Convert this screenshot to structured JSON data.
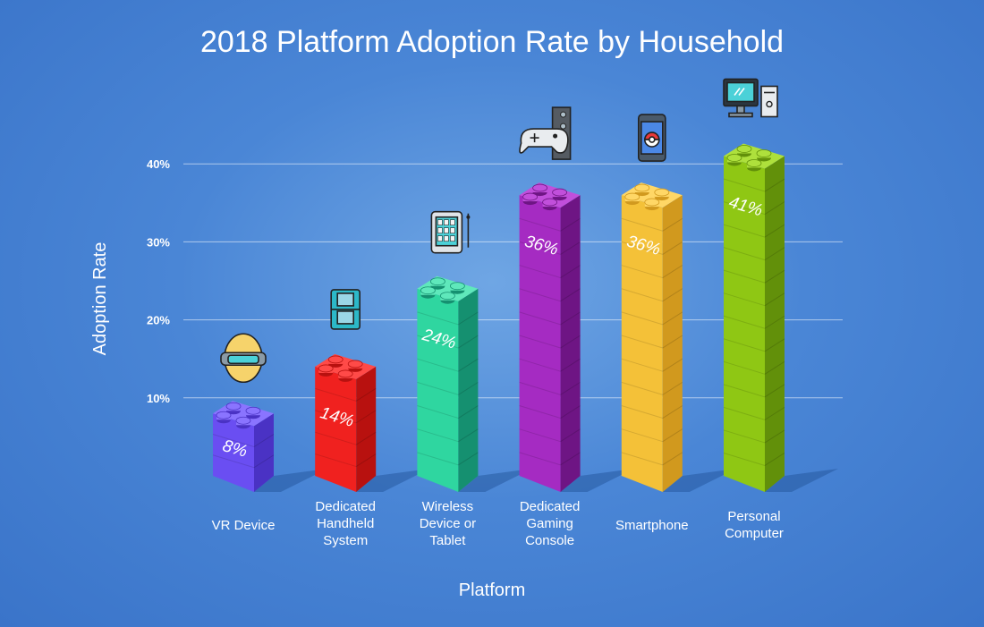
{
  "chart_data": {
    "type": "bar",
    "title": "2018 Platform Adoption Rate by Household",
    "xlabel": "Platform",
    "ylabel": "Adoption Rate",
    "ylim": [
      0,
      45
    ],
    "yticks": [
      10,
      20,
      30,
      40
    ],
    "ytick_labels": [
      "10%",
      "20%",
      "30%",
      "40%"
    ],
    "grid": true,
    "categories": [
      [
        "VR Device"
      ],
      [
        "Dedicated",
        "Handheld",
        "System"
      ],
      [
        "Wireless",
        "Device or",
        "Tablet"
      ],
      [
        "Dedicated",
        "Gaming",
        "Console"
      ],
      [
        "Smartphone"
      ],
      [
        "Personal",
        "Computer"
      ]
    ],
    "values": [
      8,
      14,
      24,
      36,
      36,
      41
    ],
    "value_labels": [
      "8%",
      "14%",
      "24%",
      "36%",
      "36%",
      "41%"
    ],
    "icons": [
      "vr-headset-icon",
      "handheld-console-icon",
      "tablet-icon",
      "game-console-icon",
      "smartphone-icon",
      "desktop-computer-icon"
    ],
    "colors": [
      {
        "front": "#6a4ef2",
        "side": "#4a32c4",
        "top": "#8a74ff"
      },
      {
        "front": "#f0211f",
        "side": "#b8110f",
        "top": "#ff4a48"
      },
      {
        "front": "#2fd6a0",
        "side": "#159070",
        "top": "#5fe8bb"
      },
      {
        "front": "#a52bc2",
        "side": "#6e1584",
        "top": "#c14fdb"
      },
      {
        "front": "#f4c138",
        "side": "#d1991e",
        "top": "#ffd766"
      },
      {
        "front": "#8fc714",
        "side": "#62900a",
        "top": "#aee03c"
      }
    ]
  }
}
